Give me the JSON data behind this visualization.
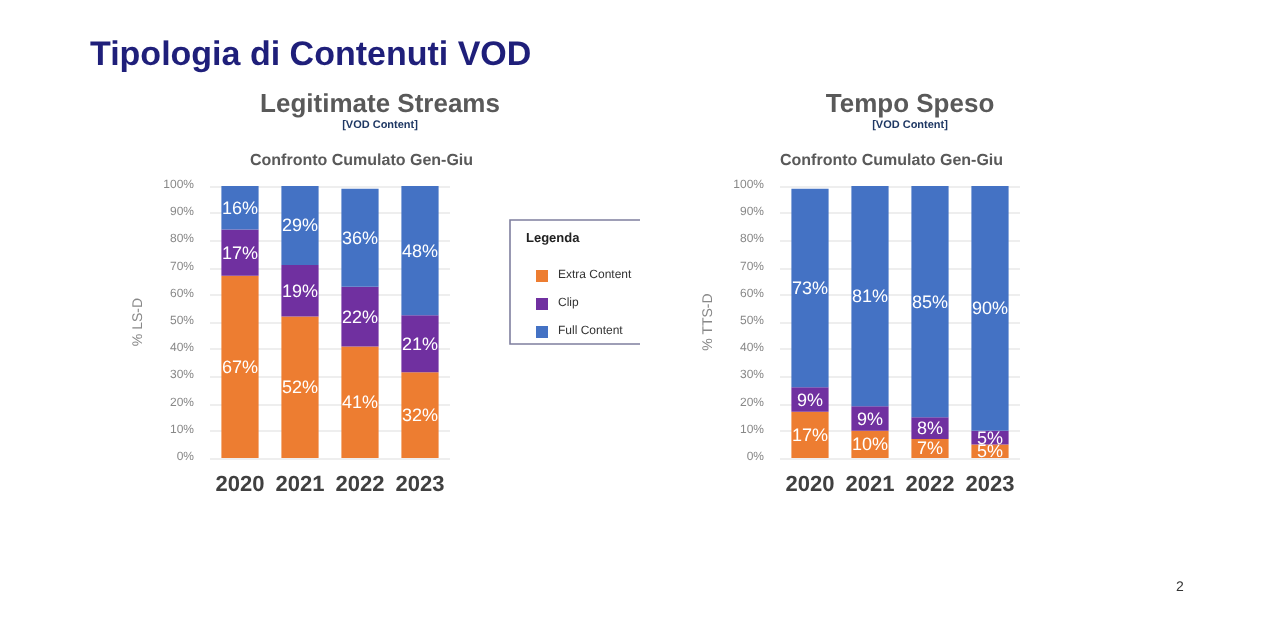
{
  "chart_data": [
    {
      "type": "bar",
      "title": "Legitimate Streams",
      "subtitle": "[VOD Content]",
      "ylabel": "% LS-D",
      "annotations": [
        "Tipologia di Contenuti VOD",
        "Confronto Cumulato Gen-Giu"
      ],
      "categories": [
        "2020",
        "2021",
        "2022",
        "2023"
      ],
      "stacked": true,
      "series": [
        {
          "name": "Extra Content",
          "color": "#ed7d31",
          "values": [
            67,
            52,
            41,
            31.5
          ],
          "value_labels": [
            "67%",
            "52%",
            "41%",
            "32%"
          ]
        },
        {
          "name": "Clip",
          "color": "#7030a0",
          "values": [
            17,
            19,
            22,
            21
          ],
          "value_labels": [
            "17%",
            "19%",
            "22%",
            "21%"
          ]
        },
        {
          "name": "Full Content",
          "color": "#4472c4",
          "values": [
            16,
            29,
            36,
            47.5
          ],
          "value_labels": [
            "16%",
            "29%",
            "36%",
            "48%"
          ]
        }
      ],
      "ylim": [
        0,
        100
      ],
      "yticks": [
        {
          "value": 0,
          "label": "0%"
        },
        {
          "value": 10,
          "label": "10%"
        },
        {
          "value": 20,
          "label": "20%"
        },
        {
          "value": 30,
          "label": "30%"
        },
        {
          "value": 40,
          "label": "40%"
        },
        {
          "value": 50,
          "label": "50%"
        },
        {
          "value": 60,
          "label": "60%"
        },
        {
          "value": 70,
          "label": "70%"
        },
        {
          "value": 80,
          "label": "80%"
        },
        {
          "value": 90,
          "label": "90%"
        },
        {
          "value": 100,
          "label": "100%"
        }
      ],
      "grid": "y",
      "legend": "right",
      "legend_title": "Legenda"
    },
    {
      "type": "bar",
      "title": "Tempo Speso",
      "subtitle": "[VOD Content]",
      "ylabel": "% TTS-D",
      "annotations": [
        "Confronto Cumulato Gen-Giu",
        "2"
      ],
      "categories": [
        "2020",
        "2021",
        "2022",
        "2023"
      ],
      "stacked": true,
      "series": [
        {
          "color": "#ed7d31",
          "values": [
            17,
            10,
            7,
            5
          ],
          "value_labels": [
            "17%",
            "10%",
            "7%",
            "5%"
          ]
        },
        {
          "color": "#7030a0",
          "values": [
            9,
            9,
            8,
            5
          ],
          "value_labels": [
            "9%",
            "9%",
            "8%",
            "5%"
          ]
        },
        {
          "color": "#4472c4",
          "values": [
            73,
            81,
            85,
            90
          ],
          "value_labels": [
            "73%",
            "81%",
            "85%",
            "90%"
          ]
        }
      ],
      "ylim": [
        0,
        100
      ],
      "yticks": [
        {
          "value": 0,
          "label": "0%"
        },
        {
          "value": 10,
          "label": "10%"
        },
        {
          "value": 20,
          "label": "20%"
        },
        {
          "value": 30,
          "label": "30%"
        },
        {
          "value": 40,
          "label": "40%"
        },
        {
          "value": 50,
          "label": "50%"
        },
        {
          "value": 60,
          "label": "60%"
        },
        {
          "value": 70,
          "label": "70%"
        },
        {
          "value": 80,
          "label": "80%"
        },
        {
          "value": 90,
          "label": "90%"
        },
        {
          "value": 100,
          "label": "100%"
        }
      ],
      "grid": "y"
    }
  ]
}
